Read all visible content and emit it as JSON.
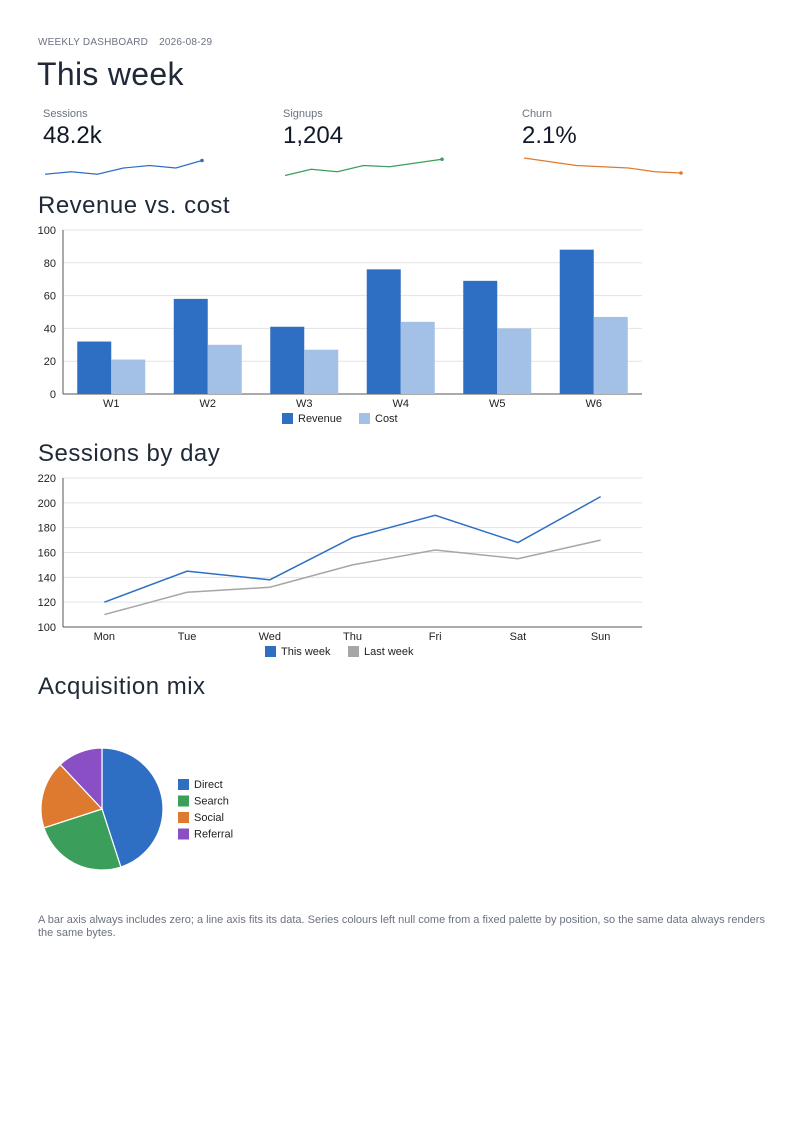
{
  "header": {
    "eyebrow": "WEEKLY DASHBOARD",
    "date": "2026-08-29",
    "title": "This week"
  },
  "kpis": [
    {
      "label": "Sessions",
      "value": "48.2k",
      "color": "#2e6fc4",
      "trend": [
        3,
        5,
        3,
        8,
        10,
        8,
        14
      ]
    },
    {
      "label": "Signups",
      "value": "1,204",
      "color": "#3b9e5a",
      "trend": [
        2,
        7,
        5,
        10,
        9,
        12,
        15
      ]
    },
    {
      "label": "Churn",
      "value": "2.1%",
      "color": "#dd7a30",
      "trend": [
        16,
        13,
        10,
        9,
        8,
        5,
        4
      ]
    }
  ],
  "chart_data": [
    {
      "type": "bar",
      "title": "Revenue vs. cost",
      "categories": [
        "W1",
        "W2",
        "W3",
        "W4",
        "W5",
        "W6"
      ],
      "series": [
        {
          "name": "Revenue",
          "color": "#2e6fc4",
          "values": [
            32,
            58,
            41,
            76,
            69,
            88
          ]
        },
        {
          "name": "Cost",
          "color": "#a3c0e6",
          "values": [
            21,
            30,
            27,
            44,
            40,
            47
          ]
        }
      ],
      "ylim": [
        0,
        100
      ],
      "yticks": [
        0,
        20,
        40,
        60,
        80,
        100
      ],
      "grid": true,
      "legend": "bottom"
    },
    {
      "type": "line",
      "title": "Sessions by day",
      "categories": [
        "Mon",
        "Tue",
        "Wed",
        "Thu",
        "Fri",
        "Sat",
        "Sun"
      ],
      "series": [
        {
          "name": "This week",
          "color": "#2e6fc4",
          "values": [
            120,
            145,
            138,
            172,
            190,
            168,
            205
          ]
        },
        {
          "name": "Last week",
          "color": "#a6a6a6",
          "values": [
            110,
            128,
            132,
            150,
            162,
            155,
            170
          ]
        }
      ],
      "ylim": [
        100,
        220
      ],
      "yticks": [
        100,
        120,
        140,
        160,
        180,
        200,
        220
      ],
      "grid": true,
      "legend": "bottom"
    },
    {
      "type": "pie",
      "title": "Acquisition mix",
      "slices": [
        {
          "name": "Direct",
          "color": "#2e6fc4",
          "value": 45
        },
        {
          "name": "Search",
          "color": "#3b9e5a",
          "value": 25
        },
        {
          "name": "Social",
          "color": "#dd7a30",
          "value": 18
        },
        {
          "name": "Referral",
          "color": "#8a4fc4",
          "value": 12
        }
      ],
      "legend": "right"
    }
  ],
  "note": "A bar axis always includes zero; a line axis fits its data. Series colours left null come from a fixed palette by position, so the same data always renders the same bytes."
}
